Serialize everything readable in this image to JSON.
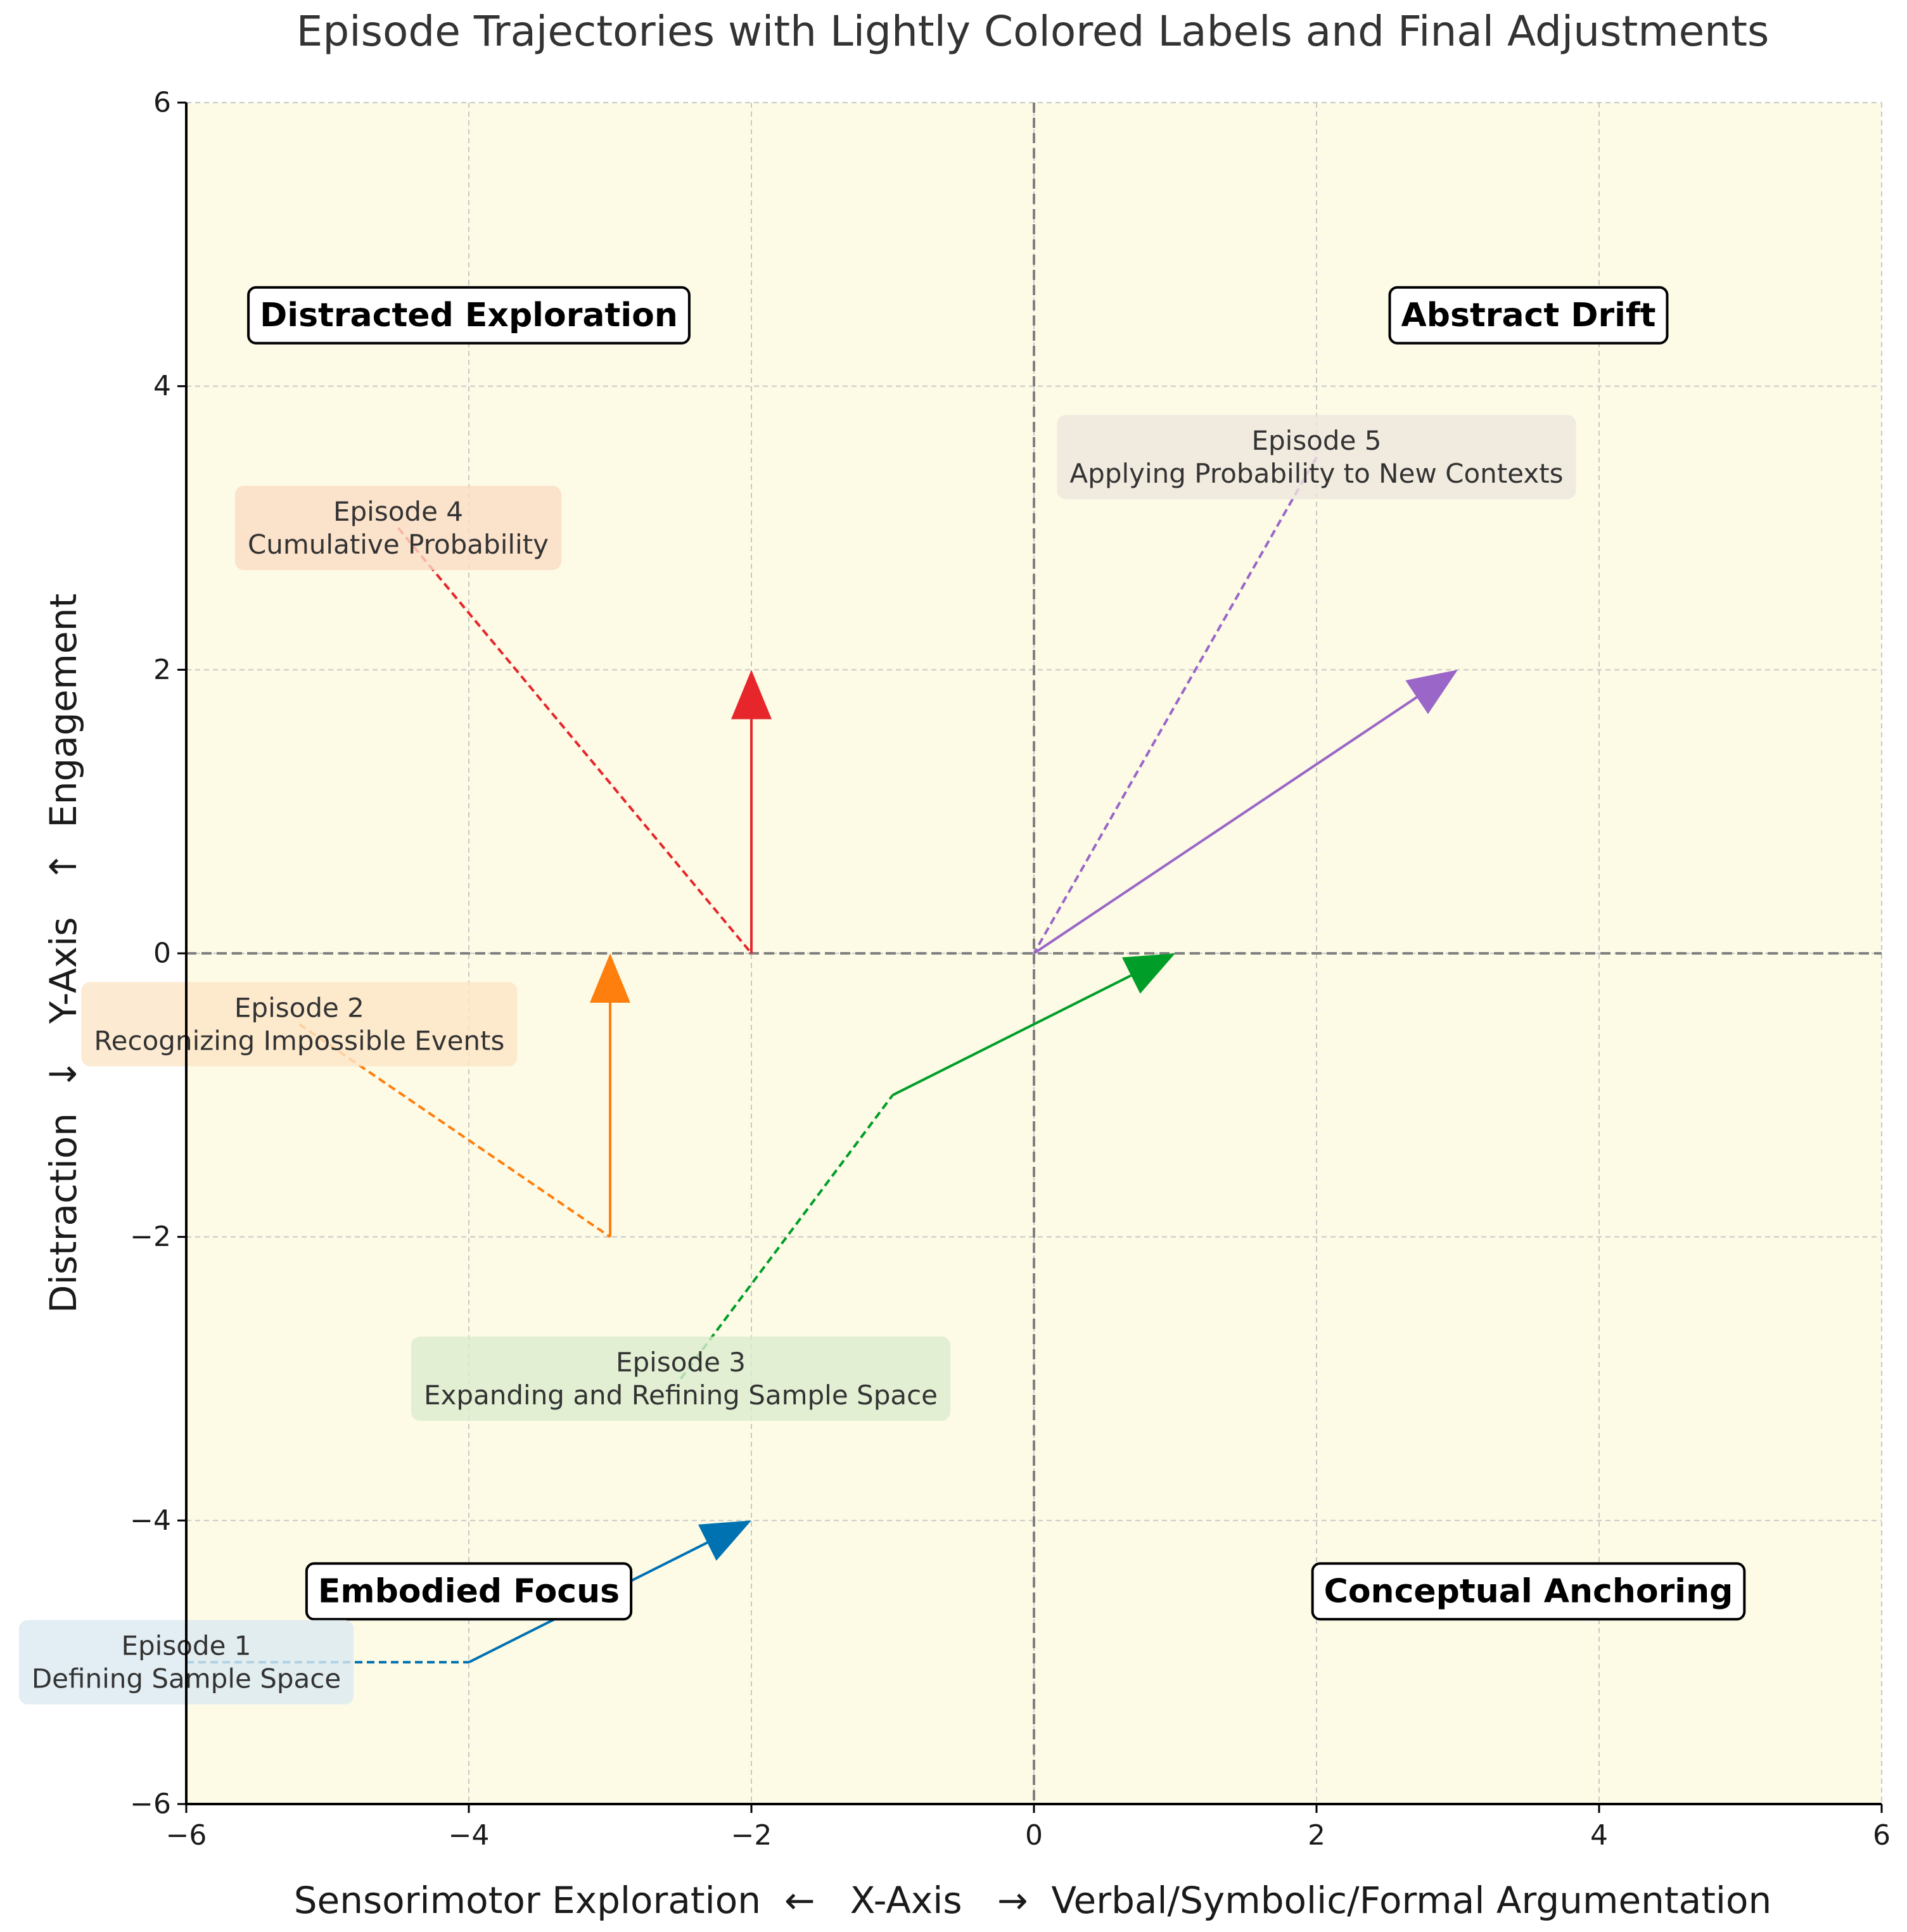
{
  "chart_data": {
    "type": "line",
    "title": "Episode Trajectories with Lightly Colored Labels and Final Adjustments",
    "xlabel": "Sensorimotor Exploration  ←   X-Axis   →  Verbal/Symbolic/Formal Argumentation",
    "ylabel": "Distraction  ↓   Y-Axis   ↑  Engagement",
    "xlim": [
      -6,
      6
    ],
    "ylim": [
      -6,
      6
    ],
    "xticks": [
      -6,
      -4,
      -2,
      0,
      2,
      4,
      6
    ],
    "yticks": [
      -6,
      -4,
      -2,
      0,
      2,
      4,
      6
    ],
    "xtick_labels": [
      "−6",
      "−4",
      "−2",
      "0",
      "2",
      "4",
      "6"
    ],
    "ytick_labels": [
      "−6",
      "−4",
      "−2",
      "0",
      "2",
      "4",
      "6"
    ],
    "grid": true,
    "background": "#fdfbe6",
    "quadrants": [
      {
        "label": "Distracted Exploration",
        "x": -4,
        "y": 4.5
      },
      {
        "label": "Abstract Drift",
        "x": 3.5,
        "y": 4.5
      },
      {
        "label": "Embodied Focus",
        "x": -4,
        "y": -4.5
      },
      {
        "label": "Conceptual Anchoring",
        "x": 3.5,
        "y": -4.5
      }
    ],
    "series": [
      {
        "name": "Episode 1",
        "description": "Defining Sample Space",
        "color": "#0072b2",
        "label_bg": "#dceaf2",
        "label_anchor": [
          -6,
          -5
        ],
        "dashed_from": [
          -6,
          -5
        ],
        "dashed_to": [
          -4,
          -5
        ],
        "arrow_from": [
          -4,
          -5
        ],
        "arrow_to": [
          -2,
          -4
        ]
      },
      {
        "name": "Episode 2",
        "description": "Recognizing Impossible Events",
        "color": "#ff7f0e",
        "label_bg": "#fde6c8",
        "label_anchor": [
          -5.2,
          -0.5
        ],
        "dashed_from": [
          -5.2,
          -0.5
        ],
        "dashed_to": [
          -3,
          -2
        ],
        "arrow_from": [
          -3,
          -2
        ],
        "arrow_to": [
          -3,
          0
        ]
      },
      {
        "name": "Episode 3",
        "description": "Expanding and Refining Sample Space",
        "color": "#009e28",
        "label_bg": "#dcedcf",
        "label_anchor": [
          -2.5,
          -3
        ],
        "dashed_from": [
          -2.5,
          -3
        ],
        "dashed_to": [
          -1,
          -1
        ],
        "arrow_from": [
          -1,
          -1
        ],
        "arrow_to": [
          1,
          0
        ]
      },
      {
        "name": "Episode 4",
        "description": "Cumulative Probability",
        "color": "#e6262b",
        "label_bg": "#fbdcc4",
        "label_anchor": [
          -4.5,
          3
        ],
        "dashed_from": [
          -4.5,
          3
        ],
        "dashed_to": [
          -2,
          0
        ],
        "arrow_from": [
          -2,
          0
        ],
        "arrow_to": [
          -2,
          2
        ]
      },
      {
        "name": "Episode 5",
        "description": "Applying Probability to New Contexts",
        "color": "#9a66c8",
        "label_bg": "#efe6de",
        "label_anchor": [
          2,
          3.5
        ],
        "dashed_from": [
          2,
          3.5
        ],
        "dashed_to": [
          0,
          0
        ],
        "arrow_from": [
          0,
          0
        ],
        "arrow_to": [
          3,
          2
        ]
      }
    ]
  }
}
